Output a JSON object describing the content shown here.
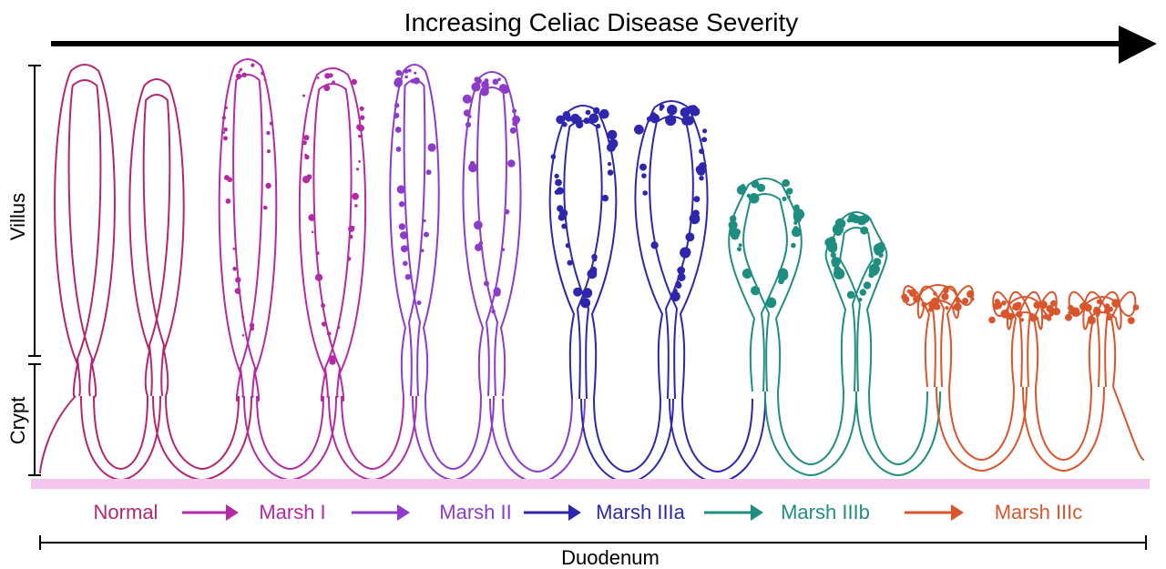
{
  "title": "Increasing Celiac Disease Severity",
  "axis_labels": {
    "villus": "Villus",
    "crypt": "Crypt",
    "duodenum": "Duodenum"
  },
  "stages": [
    {
      "label": "Normal",
      "color": "#b5256f"
    },
    {
      "label": "Marsh I",
      "color": "#b32aa6"
    },
    {
      "label": "Marsh II",
      "color": "#8d3bcb"
    },
    {
      "label": "Marsh IIIa",
      "color": "#2e27ae"
    },
    {
      "label": "Marsh IIIb",
      "color": "#1f8e80"
    },
    {
      "label": "Marsh IIIc",
      "color": "#d9552b"
    }
  ],
  "colors": {
    "arrow": "#000000",
    "baseline": "#f4c6ee",
    "normal": "#b5256f",
    "marsh1": "#b32aa6",
    "marsh2": "#8d3bcb",
    "marsh3a": "#2e27ae",
    "marsh3b": "#1f8e80",
    "marsh3c": "#d9552b"
  }
}
